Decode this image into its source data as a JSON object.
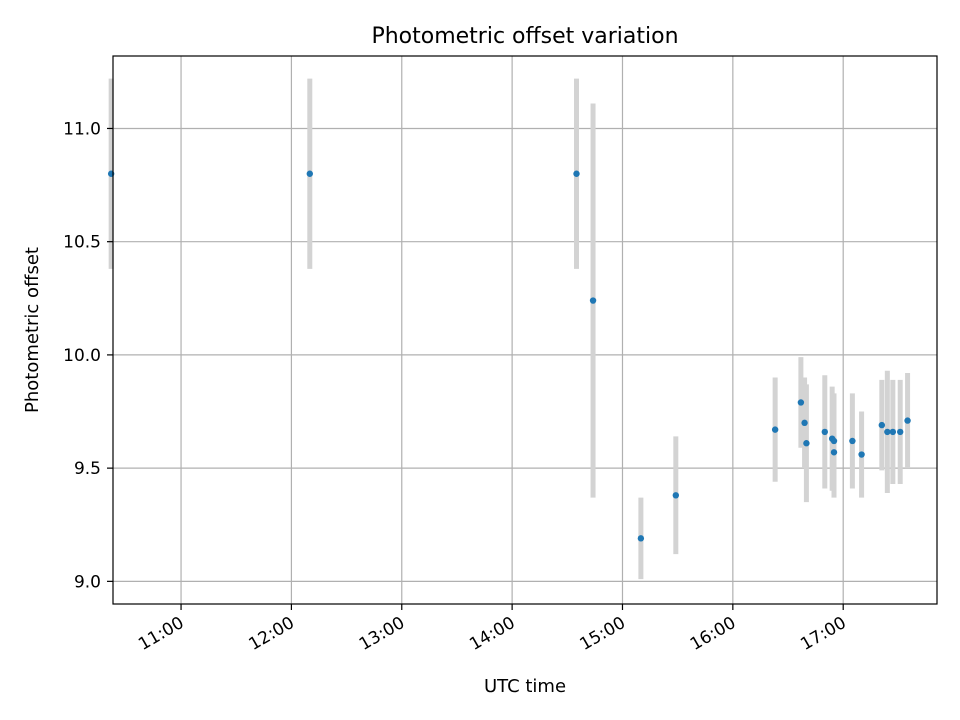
{
  "chart_data": {
    "type": "scatter",
    "title": "Photometric offset variation",
    "xlabel": "UTC time",
    "ylabel": "Photometric offset",
    "x_unit": "UTC time (HH:MM)",
    "xlim": [
      "10:23",
      "17:51"
    ],
    "ylim": [
      8.9,
      11.32
    ],
    "grid": true,
    "x_ticks": [
      "11:00",
      "12:00",
      "13:00",
      "14:00",
      "15:00",
      "16:00",
      "17:00"
    ],
    "y_ticks": [
      9.0,
      9.5,
      10.0,
      10.5,
      11.0
    ],
    "y_tick_labels": [
      "9.0",
      "9.5",
      "10.0",
      "10.5",
      "11.0"
    ],
    "point_color": "#1f77b4",
    "errorbar_color": "#d3d3d3",
    "series": [
      {
        "points": [
          {
            "x": "10:22",
            "y": 10.8,
            "err": 0.42
          },
          {
            "x": "12:10",
            "y": 10.8,
            "err": 0.42
          },
          {
            "x": "14:35",
            "y": 10.8,
            "err": 0.42
          },
          {
            "x": "14:44",
            "y": 10.24,
            "err": 0.87
          },
          {
            "x": "15:10",
            "y": 9.19,
            "err": 0.18
          },
          {
            "x": "15:29",
            "y": 9.38,
            "err": 0.26
          },
          {
            "x": "16:23",
            "y": 9.67,
            "err": 0.23
          },
          {
            "x": "16:37",
            "y": 9.79,
            "err": 0.2
          },
          {
            "x": "16:39",
            "y": 9.7,
            "err": 0.2
          },
          {
            "x": "16:40",
            "y": 9.61,
            "err": 0.26
          },
          {
            "x": "16:50",
            "y": 9.66,
            "err": 0.25
          },
          {
            "x": "16:54",
            "y": 9.63,
            "err": 0.23
          },
          {
            "x": "16:55",
            "y": 9.62,
            "err": 0.21
          },
          {
            "x": "16:55",
            "y": 9.57,
            "err": 0.2
          },
          {
            "x": "17:05",
            "y": 9.62,
            "err": 0.21
          },
          {
            "x": "17:10",
            "y": 9.56,
            "err": 0.19
          },
          {
            "x": "17:21",
            "y": 9.69,
            "err": 0.2
          },
          {
            "x": "17:24",
            "y": 9.66,
            "err": 0.27
          },
          {
            "x": "17:27",
            "y": 9.66,
            "err": 0.23
          },
          {
            "x": "17:31",
            "y": 9.66,
            "err": 0.23
          },
          {
            "x": "17:35",
            "y": 9.71,
            "err": 0.21
          }
        ]
      }
    ]
  }
}
